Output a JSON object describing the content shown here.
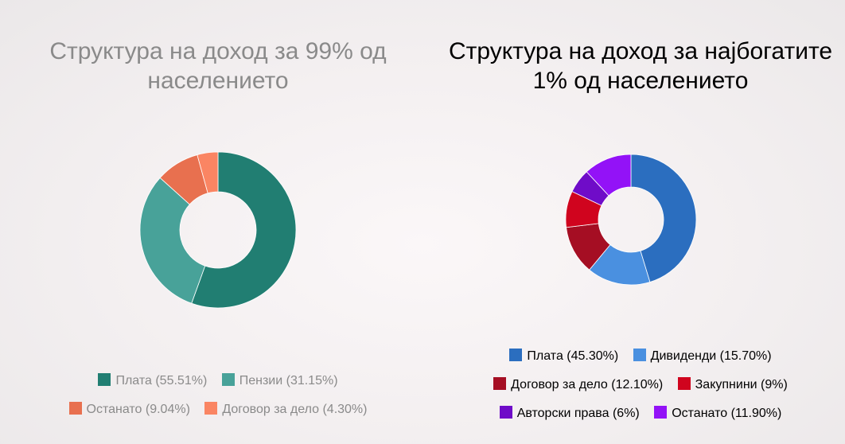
{
  "chart_data": [
    {
      "type": "pie",
      "title": "Структура на доход за 99% од населението",
      "donut": true,
      "categories": [
        "Плата",
        "Пензии",
        "Останато",
        "Договор за дело"
      ],
      "values": [
        55.51,
        31.15,
        9.04,
        4.3
      ],
      "colors": [
        "#217e72",
        "#48a299",
        "#e8704f",
        "#fa8563"
      ],
      "legend": [
        {
          "label": "Плата (55.51%)",
          "color": "#217e72"
        },
        {
          "label": "Пензии (31.15%)",
          "color": "#48a299"
        },
        {
          "label": "Останато (9.04%)",
          "color": "#e8704f"
        },
        {
          "label": "Договор за дело (4.30%)",
          "color": "#fa8563"
        }
      ],
      "legend_position": "bottom"
    },
    {
      "type": "pie",
      "title": "Структура на доход за најбогатите 1% од населението",
      "donut": true,
      "categories": [
        "Плата",
        "Дивиденди",
        "Договор за дело",
        "Закупнини",
        "Авторски права",
        "Останато"
      ],
      "values": [
        45.3,
        15.7,
        12.1,
        9,
        6,
        11.9
      ],
      "colors": [
        "#2b6ebf",
        "#4a90e0",
        "#a50e23",
        "#d0041e",
        "#6f0cc8",
        "#9312f7"
      ],
      "legend": [
        {
          "label": "Плата (45.30%)",
          "color": "#2b6ebf"
        },
        {
          "label": "Дивиденди (15.70%)",
          "color": "#4a90e0"
        },
        {
          "label": "Договор за дело (12.10%)",
          "color": "#a50e23"
        },
        {
          "label": "Закупнини (9%)",
          "color": "#d0041e"
        },
        {
          "label": "Авторски права (6%)",
          "color": "#6f0cc8"
        },
        {
          "label": "Останато (11.90%)",
          "color": "#9312f7"
        }
      ],
      "legend_position": "bottom"
    }
  ]
}
